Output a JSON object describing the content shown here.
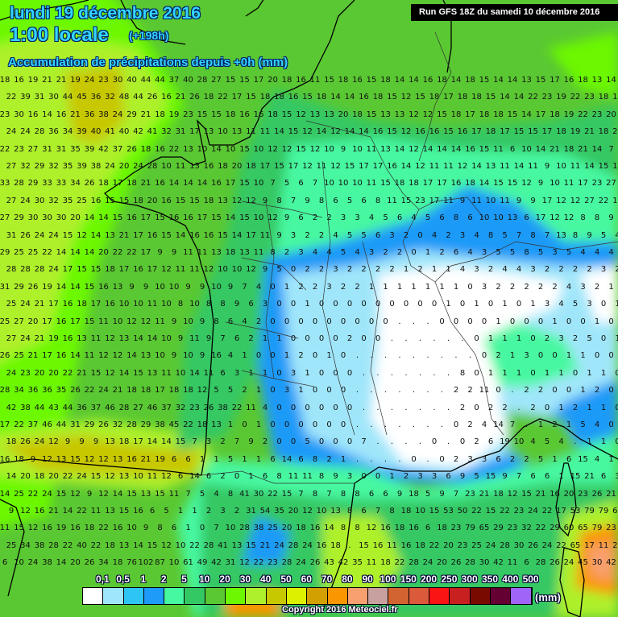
{
  "header": {
    "date_line": "lundi 19 décembre 2016",
    "time_line": "1:00 locale",
    "lead_time": "(+198h)",
    "parameter": "Accumulation de précipitations depuis +0h (mm)",
    "run_label": "Run GFS 18Z du samedi 10 décembre 2016"
  },
  "legend": {
    "unit": "(mm)",
    "labels": [
      "0,1",
      "0,5",
      "1",
      "2",
      "5",
      "10",
      "20",
      "30",
      "40",
      "50",
      "60",
      "70",
      "80",
      "90",
      "100",
      "150",
      "200",
      "250",
      "300",
      "350",
      "400",
      "500"
    ],
    "colors": [
      "#ffffff",
      "#a0e6fa",
      "#2ec4f4",
      "#1e9af8",
      "#46f8a0",
      "#34c864",
      "#5ac832",
      "#6cf800",
      "#aef02c",
      "#c8c800",
      "#dcf000",
      "#d2a000",
      "#fa9600",
      "#f8a070",
      "#c8a0a0",
      "#d26432",
      "#dc5a3c",
      "#fa1414",
      "#c82020",
      "#780a00",
      "#640032",
      "#a064f8"
    ]
  },
  "copyright": "Copyright 2016 Meteociel.fr",
  "grid_values": [
    "18 16 19 21 21 19 24 23 30 40 44 44 37 40 28 27 15 15 17 20 18 16 11 15 18 16 15 18 14 14 16 18 14 18 15 14 14 13 15 17 16 18 13 14",
    "22 39 31 30 44 45 36 32 48 44 26 16 21 26 18 22 17 15 18 18 16 15 18 14 14 16 18 15 12 15 18 17 18 18 15 14 14 22 23 19 22 23 18 13",
    "23 30 16 14 16 21 36 38 24 29 21 18 19 23 15 15 18 16 16 18 15 12 13 13 20 18 15 13 13 12 12 15 18 17 18 18 15 14 17 18 19 22 23 20",
    "24 24 28 36 34 39 40 41 40 42 41 32 31 17 13 10 13 11 11 14 15 12 14 12 14 14 16 15 12 16 16 15 16 17 18 17 15 15 17 18 19 21 18 21",
    "22 23 27 31 31 35 39 42 37 26 18 16 22 13 10 14 10 15 10 12 12 15 12 10 9 10 11 13 14 12 14 14 14 16 15 11 6 10 14 21 18 21 14 7",
    "27 32 29 32 35 39 38 24 20 24 28 10 11 13 16 18 20 18 17 15 17 12 11 12 15 17 17 16 14 12 11 11 12 14 13 11 14 11 9 10 11 14 15 14",
    "33 28 29 33 33 34 26 18 17 18 21 16 14 14 14 16 17 15 10 7 5 6 7 10 10 10 11 15 18 18 17 17 16 18 14 15 15 12 9 10 11 17 23 27",
    "27 24 30 32 35 25 16 15 15 18 20 16 15 15 18 13 12 12 9 8 7 9 8 6 5 6 8 11 15 23 17 11 9 11 10 11 9 9 17 12 12 27 22 17",
    "27 29 30 30 30 20 14 14 15 16 17 15 16 16 17 15 14 15 10 12 9 6 2 2 3 3 4 5 6 4 5 6 8 6 10 10 13 6 17 12 12 8 8 9",
    "31 26 24 24 15 12 14 13 21 17 16 15 14 16 16 15 14 17 11 9 3 2 2 4 5 5 6 3 2 0 4 2 3 4 8 5 7 8 7 13 8 9 5 4",
    "29 25 25 22 14 14 14 20 22 22 17 9 9 11 11 13 18 13 11 8 2 3 4 4 5 4 3 2 2 0 1 2 6 4 3 5 5 8 5 3 5 4 4 4",
    "28 28 28 24 17 15 15 18 17 16 17 12 11 11 12 10 10 12 9 5 0 2 2 3 2 2 2 2 1 2 1 1 4 3 2 4 4 3 2 2 2 2 3 2",
    "31 29 26 19 14 14 15 16 13 9 9 10 10 9 9 10 9 7 4 0 1 2 2 3 2 2 1 1 1 1 1 1 1 0 3 2 2 2 2 2 4 3 2 1",
    "25 24 21 17 16 18 17 16 10 10 11 10 8 10 8 8 9 6 3 0 0 1 0 0 0 0 0 0 0 0 0 1 0 1 0 1 0 1 3 4 5 3 0 1",
    "25 27 20 17 16 17 15 11 10 12 12 11 9 10 9 8 6 4 2 0 0 0 0 0 0 0 0 0 . . . 0 0 0 0 1 0 0 0 1 0 0 1 0",
    "27 24 21 19 16 13 11 12 13 14 14 10 9 11 9 7 6 2 1 1 0 0 0 0 2 0 0 . . . . . . 0 1 1 1 0 2 3 2 5 0 1",
    "26 25 21 17 16 14 11 12 12 14 13 10 9 10 9 16 4 1 0 0 1 2 0 1 0 . . . . . . . . . 0 2 1 3 0 0 1 1 0 0",
    "24 23 20 20 22 21 15 12 14 15 13 11 10 14 11 6 3 1 1 0 3 1 0 0 0 . . . . . . . 8 0 1 1 1 0 1 1 0 1 1 0",
    "28 34 36 36 35 26 22 24 21 18 18 17 18 18 12 5 5 2 1 0 3 1 0 0 0 . . . . . . . 2 2 11 0 . 2 2 0 0 1 2 0",
    "42 38 44 43 44 36 37 46 28 27 46 37 32 23 26 38 22 11 4 0 0 0 0 0 0 . . . . . . . 2 0 2 2 . 2 0 1 2 1 1 0",
    "17 22 37 46 44 31 29 26 32 28 29 38 45 22 18 13 1 0 1 0 0 0 0 0 0 . . . . . . . 0 2 4 14 7 . 1 2 1 5 4 0",
    "18 26 24 12 9 9 9 13 18 17 14 14 15 7 3 2 7 9 2 0 0 5 0 0 0 7 . . . . 0 . 0 2 6 19 10 4 5 4 . 1 1 0",
    "16 18 9 12 13 15 12 12 13 16 21 19 6 6 1 1 5 1 1 6 14 6 8 2 1 . . . . 0 . 0 2 3 3 6 2 2 5 1 6 15 4 1",
    "14 20 18 20 22 24 15 12 13 10 11 12 6 14 6 2 0 1 6 8 11 11 8 9 3 0 0 1 2 3 3 6 9 5 15 9 7 6 6 1 15 21 6 3",
    "14 25 22 24 15 12 9 12 14 15 13 15 11 7 5 4 8 41 30 22 15 7 8 7 8 8 6 6 9 18 5 9 7 23 21 18 12 15 21 16 20 23 26 21",
    "9 12 16 21 14 22 11 13 15 16 6 5 1 1 2 3 2 31 54 35 20 12 10 13 8 6 7 8 18 10 15 53 50 22 15 22 23 24 22 17 53 79 79 60",
    "11 15 12 16 19 16 18 22 16 10 9 8 6 1 0 7 10 28 38 25 20 18 16 14 8 8 12 16 18 16 6 18 23 79 65 29 23 32 22 29 60 65 79 23",
    "25 34 38 28 22 40 22 18 13 14 15 12 10 22 28 41 13 15 21 24 28 24 16 18 . 15 16 11 16 18 22 20 23 25 24 28 30 26 24 22 65 17 11 26",
    "6 10 24 38 14 20 26 34 18 76 102 87 10 61 49 42 31 12 22 23 28 24 26 43 42 35 11 18 22 28 24 20 26 28 30 42 11 6 28 26 24 45 30 42"
  ]
}
